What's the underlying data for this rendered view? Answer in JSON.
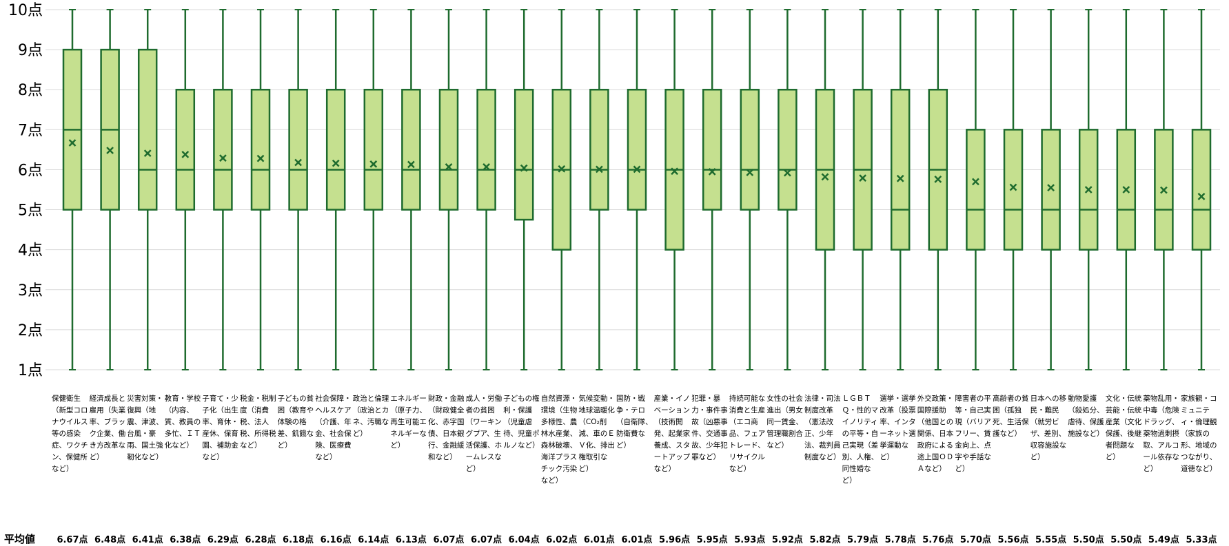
{
  "chart_data": {
    "type": "box",
    "ylim": [
      1,
      10
    ],
    "yticks": [
      "1点",
      "2点",
      "3点",
      "4点",
      "5点",
      "6点",
      "7点",
      "8点",
      "9点",
      "10点"
    ],
    "grid": true,
    "mean_row_label": "平均値",
    "colors": {
      "box_fill": "#c5e08f",
      "stroke": "#1e6b2e",
      "grid": "#d9d9d9"
    },
    "categories": [
      "保健衛生（新型コロナウイルス等の感染症、ワクチン、保健所など）",
      "経済成長と雇用（失業率、ブラック企業、働き方改革など）",
      "災害対策・復興（地震、津波、台風・豪雨、国土強靭化など）",
      "教育・学校（内容、質、教員の多忙、ＩＴ化など）",
      "子育て・少子化（出生率、育休・産休、保育園、補助金など）",
      "税金・税制度（消費税、法人税、所得税など）",
      "子どもの貧困（教育や体験の格差、飢餓など）",
      "社会保障・ヘルスケア（介護、年金、社会保険、医療費など）",
      "政治と倫理（政治とカネ、汚職など）",
      "エネルギー（原子力、再生可能エネルギーなど）",
      "財政・金融（財政健全化、赤字国債、日本銀行、金融緩和など）",
      "成人・労働者の貧困（ワーキングプア、生活保護、ホームレスなど）",
      "子どもの権利・保護（児童虐待、児童ポルノなど）",
      "自然資源・環境（生物多様性、農林水産業、森林破壊、海洋プラスチック汚染など）",
      "気候変動・地球温暖化（CO₂削減、車のＥＶ化、排出権取引など）",
      "国防・戦争・テロ（自衛隊、防衛費など）",
      "産業・イノベーション（技術開発、起業家養成、スタートアップなど）",
      "犯罪・暴力・事件事故（凶悪事件、交通事故、少年犯罪など）",
      "持続可能な消費と生産（エコ商品、フェアトレード、リサイクルなど）",
      "女性の社会進出（男女同一賃金、管理職割合など）",
      "法律・司法制度改革（憲法改正、少年法、裁判員制度など）",
      "ＬＧＢＴＱ・性的マイノリティの平等・自己実現（差別、人権、同性婚など）",
      "選挙・選挙改革（投票率、インターネット選挙運動など）",
      "外交政策・国際援助（他国との関係、日本政府による途上国ＯＤＡなど）",
      "障害者の平等・自己実現（バリアフリー、賃金向上、点字や手話など）",
      "高齢者の貧困（孤独死、生活保護など）",
      "日本への移民・難民（就労ビザ、差別、収容施設など）",
      "動物愛護（殺処分、虐待、保護施設など）",
      "文化・伝統芸能・伝統産業（文化保護、後継者問題など）",
      "薬物乱用・中毒（危険ドラッグ、薬物過剰摂取、アルコール依存など）",
      "家族観・コミュニティ・倫理観（家族の形、地域のつながり、道徳など）"
    ],
    "series": [
      {
        "min": [
          1,
          1,
          1,
          1,
          1,
          1,
          1,
          1,
          1,
          1,
          1,
          1,
          1,
          1,
          1,
          1,
          1,
          1,
          1,
          1,
          1,
          1,
          1,
          1,
          1,
          1,
          1,
          1,
          1,
          1,
          1
        ],
        "q1": [
          5,
          5,
          5,
          5,
          5,
          5,
          5,
          5,
          5,
          5,
          5,
          5,
          4.75,
          4,
          5,
          5,
          4,
          5,
          5,
          5,
          4,
          4,
          4,
          4,
          4,
          4,
          4,
          4,
          4,
          4,
          4
        ],
        "median": [
          7,
          7,
          6,
          6,
          6,
          6,
          6,
          6,
          6,
          6,
          6,
          6,
          6,
          6,
          6,
          6,
          6,
          6,
          6,
          6,
          6,
          6,
          5,
          6,
          5,
          5,
          5,
          5,
          5,
          5,
          5
        ],
        "q3": [
          9,
          9,
          9,
          8,
          8,
          8,
          8,
          8,
          8,
          8,
          8,
          8,
          8,
          8,
          8,
          8,
          8,
          8,
          8,
          8,
          8,
          8,
          8,
          8,
          7,
          7,
          7,
          7,
          7,
          7,
          7
        ],
        "max": [
          10,
          10,
          10,
          10,
          10,
          10,
          10,
          10,
          10,
          10,
          10,
          10,
          10,
          10,
          10,
          10,
          10,
          10,
          10,
          10,
          10,
          10,
          10,
          10,
          10,
          10,
          10,
          10,
          10,
          10,
          10
        ],
        "mean": [
          6.67,
          6.48,
          6.41,
          6.38,
          6.29,
          6.28,
          6.18,
          6.16,
          6.14,
          6.13,
          6.07,
          6.07,
          6.04,
          6.02,
          6.01,
          6.01,
          5.96,
          5.95,
          5.93,
          5.92,
          5.82,
          5.79,
          5.78,
          5.76,
          5.7,
          5.56,
          5.55,
          5.5,
          5.5,
          5.49,
          5.33
        ]
      }
    ],
    "mean_labels": [
      "6.67点",
      "6.48点",
      "6.41点",
      "6.38点",
      "6.29点",
      "6.28点",
      "6.18点",
      "6.16点",
      "6.14点",
      "6.13点",
      "6.07点",
      "6.07点",
      "6.04点",
      "6.02点",
      "6.01点",
      "6.01点",
      "5.96点",
      "5.95点",
      "5.93点",
      "5.92点",
      "5.82点",
      "5.79点",
      "5.78点",
      "5.76点",
      "5.70点",
      "5.56点",
      "5.55点",
      "5.50点",
      "5.50点",
      "5.49点",
      "5.33点"
    ]
  }
}
